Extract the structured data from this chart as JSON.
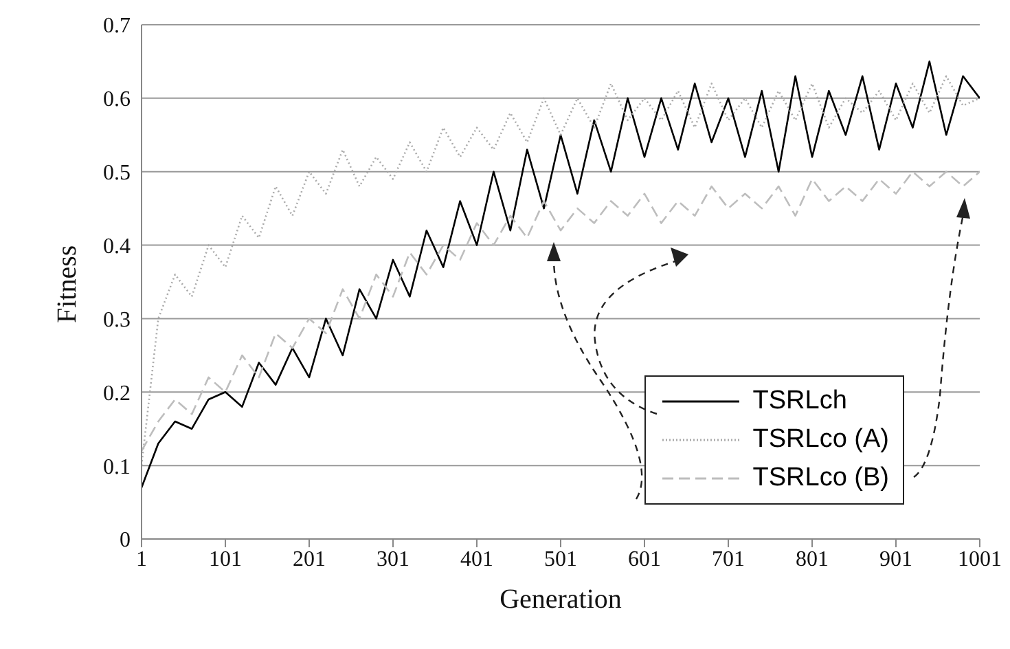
{
  "chart_data": {
    "type": "line",
    "xlabel": "Generation",
    "ylabel": "Fitness",
    "x": [
      1,
      21,
      41,
      61,
      81,
      101,
      121,
      141,
      161,
      181,
      201,
      221,
      241,
      261,
      281,
      301,
      321,
      341,
      361,
      381,
      401,
      421,
      441,
      461,
      481,
      501,
      521,
      541,
      561,
      581,
      601,
      621,
      641,
      661,
      681,
      701,
      721,
      741,
      761,
      781,
      801,
      821,
      841,
      861,
      881,
      901,
      921,
      941,
      961,
      981,
      1001
    ],
    "series": [
      {
        "name": "TSRLch",
        "color": "#000000",
        "line_style": "solid",
        "values": [
          0.07,
          0.13,
          0.16,
          0.15,
          0.19,
          0.2,
          0.18,
          0.24,
          0.21,
          0.26,
          0.22,
          0.3,
          0.25,
          0.34,
          0.3,
          0.38,
          0.33,
          0.42,
          0.37,
          0.46,
          0.4,
          0.5,
          0.42,
          0.53,
          0.45,
          0.55,
          0.47,
          0.57,
          0.5,
          0.6,
          0.52,
          0.6,
          0.53,
          0.62,
          0.54,
          0.6,
          0.52,
          0.61,
          0.5,
          0.63,
          0.52,
          0.61,
          0.55,
          0.63,
          0.53,
          0.62,
          0.56,
          0.65,
          0.55,
          0.63,
          0.6
        ]
      },
      {
        "name": "TSRLco (A)",
        "color": "#aaaaaa",
        "line_style": "dotted",
        "values": [
          0.1,
          0.3,
          0.36,
          0.33,
          0.4,
          0.37,
          0.44,
          0.41,
          0.48,
          0.44,
          0.5,
          0.47,
          0.53,
          0.48,
          0.52,
          0.49,
          0.54,
          0.5,
          0.56,
          0.52,
          0.56,
          0.53,
          0.58,
          0.54,
          0.6,
          0.55,
          0.6,
          0.56,
          0.62,
          0.57,
          0.6,
          0.57,
          0.61,
          0.56,
          0.62,
          0.57,
          0.6,
          0.56,
          0.61,
          0.57,
          0.62,
          0.56,
          0.6,
          0.58,
          0.61,
          0.57,
          0.62,
          0.58,
          0.63,
          0.59,
          0.6
        ]
      },
      {
        "name": "TSRLco (B)",
        "color": "#bdbdbd",
        "line_style": "dashed",
        "values": [
          0.12,
          0.16,
          0.19,
          0.17,
          0.22,
          0.2,
          0.25,
          0.22,
          0.28,
          0.26,
          0.3,
          0.28,
          0.34,
          0.3,
          0.36,
          0.33,
          0.39,
          0.36,
          0.4,
          0.38,
          0.43,
          0.4,
          0.44,
          0.41,
          0.46,
          0.42,
          0.45,
          0.43,
          0.46,
          0.44,
          0.47,
          0.43,
          0.46,
          0.44,
          0.48,
          0.45,
          0.47,
          0.45,
          0.48,
          0.44,
          0.49,
          0.46,
          0.48,
          0.46,
          0.49,
          0.47,
          0.5,
          0.48,
          0.5,
          0.48,
          0.5
        ]
      }
    ],
    "xlim": [
      1,
      1001
    ],
    "xticks": [
      1,
      101,
      201,
      301,
      401,
      501,
      601,
      701,
      801,
      901,
      1001
    ],
    "ylim": [
      0,
      0.7
    ],
    "yticks": [
      0,
      0.1,
      0.2,
      0.3,
      0.4,
      0.5,
      0.6,
      0.7
    ],
    "grid": "y",
    "legend": "bottom right",
    "marker": "none"
  }
}
